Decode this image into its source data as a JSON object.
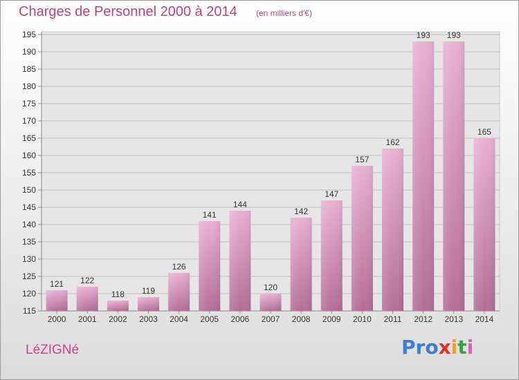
{
  "header": {
    "title": "Charges de Personnel 2000 à 2014",
    "subtitle": "(en milliers d'€)"
  },
  "footer": {
    "commune": "LéZIGNé",
    "logo": {
      "p1": "Pro",
      "x": "x",
      "i1": "i",
      "t": "t",
      "i2": "i"
    }
  },
  "colors": {
    "bar_light": "#eab0d4",
    "bar_dark": "#b46e98",
    "text_accent": "#c0407a"
  },
  "chart_data": {
    "type": "bar",
    "title": "Charges de Personnel 2000 à 2014",
    "subtitle": "(en milliers d'€)",
    "categories": [
      "2000",
      "2001",
      "2002",
      "2003",
      "2004",
      "2005",
      "2006",
      "2007",
      "2008",
      "2009",
      "2010",
      "2011",
      "2012",
      "2013",
      "2014"
    ],
    "values": [
      121,
      122,
      118,
      119,
      126,
      141,
      144,
      120,
      142,
      147,
      157,
      162,
      193,
      193,
      165
    ],
    "ylim": [
      115,
      195
    ],
    "yticks": [
      115,
      120,
      125,
      130,
      135,
      140,
      145,
      150,
      155,
      160,
      165,
      170,
      175,
      180,
      185,
      190,
      195
    ],
    "grid": true,
    "data_labels": true
  }
}
